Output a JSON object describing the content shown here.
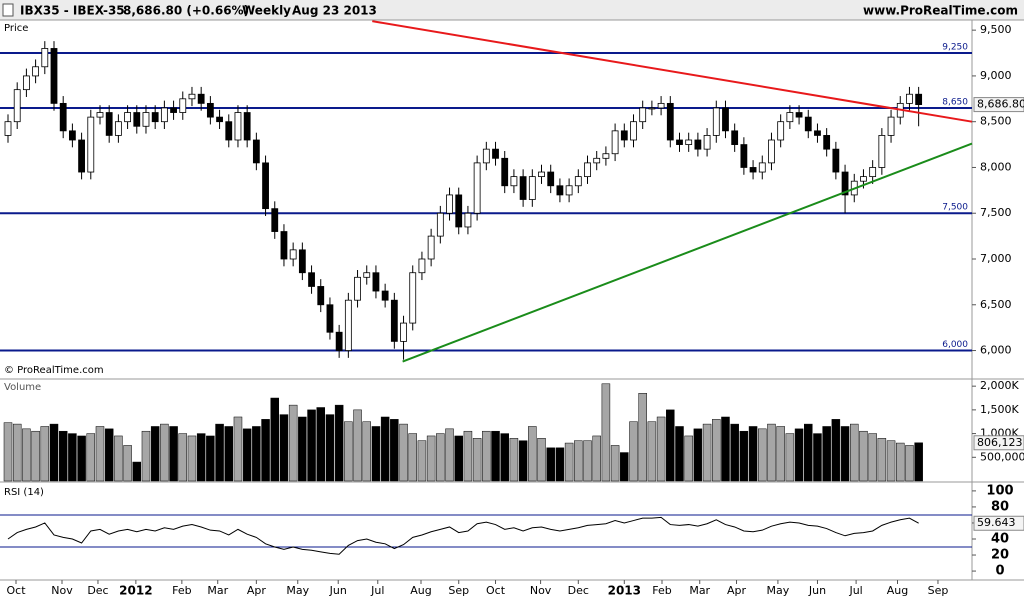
{
  "chart_data": [
    {
      "type": "candlestick",
      "title": "IBX35 - IBEX-35",
      "quote": "8,686.80 (+0.66%)",
      "period": "Weekly",
      "date": "Aug 23 2013",
      "source": "www.ProRealTime.com",
      "panel_label": "Price",
      "copyright": "© ProRealTime.com",
      "up_color": "#ffffff",
      "down_color": "#000000",
      "xlim": [
        -0.87,
        104.8
      ],
      "ylim": [
        5700,
        9600
      ],
      "yticks": [
        {
          "value": 6000,
          "label": "6,000"
        },
        {
          "value": 6500,
          "label": "6,500"
        },
        {
          "value": 7000,
          "label": "7,000"
        },
        {
          "value": 7500,
          "label": "7,500"
        },
        {
          "value": 8000,
          "label": "8,000"
        },
        {
          "value": 8500,
          "label": "8,500"
        },
        {
          "value": 9000,
          "label": "9,000"
        },
        {
          "value": 9500,
          "label": "9,500"
        }
      ],
      "last_label": {
        "value": 8686.8,
        "label": "8,686.80"
      },
      "levels": [
        {
          "value": 9250,
          "label": "9,250"
        },
        {
          "value": 8650,
          "label": "8,650"
        },
        {
          "value": 7500,
          "label": "7,500"
        },
        {
          "value": 6000,
          "label": "6,000"
        }
      ],
      "level_color": "#0a1a8c",
      "trendlines": [
        {
          "color": "#e8191b",
          "points": [
            [
              39.6,
              9598
            ],
            [
              104.8,
              8500
            ]
          ]
        },
        {
          "color": "#1a8c1a",
          "points": [
            [
              42.9,
              5880
            ],
            [
              104.8,
              8261
            ]
          ]
        }
      ],
      "open": [
        8350,
        8500,
        8850,
        9000,
        9100,
        9300,
        8700,
        8400,
        8300,
        7950,
        8550,
        8600,
        8350,
        8500,
        8600,
        8450,
        8600,
        8500,
        8650,
        8600,
        8750,
        8800,
        8700,
        8550,
        8500,
        8300,
        8600,
        8300,
        8050,
        7550,
        7300,
        7000,
        7100,
        6850,
        6700,
        6500,
        6200,
        6000,
        6550,
        6800,
        6850,
        6650,
        6550,
        6100,
        6300,
        6850,
        7000,
        7250,
        7500,
        7700,
        7350,
        7500,
        8050,
        8200,
        8100,
        7800,
        7900,
        7650,
        7900,
        7950,
        7800,
        7700,
        7800,
        7900,
        8050,
        8100,
        8150,
        8400,
        8300,
        8500,
        8650,
        8650,
        8700,
        8300,
        8250,
        8300,
        8200,
        8350,
        8650,
        8400,
        8250,
        8000,
        7950,
        8050,
        8300,
        8500,
        8600,
        8550,
        8400,
        8350,
        8200,
        7950,
        7700,
        7850,
        7900,
        8000,
        8350,
        8550,
        8700,
        8800
      ],
      "high": [
        8580,
        8930,
        9080,
        9180,
        9380,
        9380,
        8780,
        8480,
        8380,
        8630,
        8680,
        8680,
        8580,
        8680,
        8680,
        8680,
        8680,
        8730,
        8730,
        8830,
        8880,
        8880,
        8780,
        8630,
        8580,
        8680,
        8680,
        8380,
        8130,
        7630,
        7380,
        7180,
        7180,
        6930,
        6780,
        6580,
        6280,
        6630,
        6880,
        6930,
        6930,
        6730,
        6630,
        6380,
        6930,
        7080,
        7330,
        7580,
        7780,
        7780,
        7580,
        8130,
        8280,
        8280,
        8180,
        7980,
        7980,
        7980,
        8030,
        8030,
        7880,
        7880,
        7980,
        8130,
        8180,
        8230,
        8480,
        8480,
        8580,
        8730,
        8730,
        8780,
        8780,
        8380,
        8380,
        8380,
        8430,
        8730,
        8730,
        8480,
        8330,
        8080,
        8130,
        8380,
        8580,
        8680,
        8680,
        8630,
        8480,
        8430,
        8280,
        8030,
        7930,
        7980,
        8080,
        8430,
        8630,
        8780,
        8880,
        8880
      ],
      "low": [
        8270,
        8420,
        8770,
        8920,
        9020,
        8620,
        8320,
        8220,
        7870,
        7870,
        8470,
        8270,
        8270,
        8420,
        8370,
        8370,
        8420,
        8420,
        8520,
        8520,
        8670,
        8620,
        8470,
        8420,
        8220,
        8220,
        8220,
        7970,
        7470,
        7220,
        6920,
        6920,
        6770,
        6620,
        6420,
        6120,
        5920,
        5920,
        6470,
        6720,
        6570,
        6470,
        6020,
        5900,
        6220,
        6770,
        6920,
        7170,
        7420,
        7270,
        7270,
        7420,
        7970,
        8020,
        7720,
        7720,
        7570,
        7570,
        7820,
        7720,
        7620,
        7620,
        7720,
        7820,
        7970,
        8020,
        8070,
        8220,
        8220,
        8420,
        8570,
        8570,
        8220,
        8170,
        8170,
        8120,
        8120,
        8270,
        8320,
        8170,
        7920,
        7870,
        7870,
        7970,
        8220,
        8420,
        8470,
        8320,
        8270,
        8120,
        7870,
        7500,
        7620,
        7770,
        7820,
        7920,
        8270,
        8470,
        8620,
        8450
      ],
      "close": [
        8500,
        8850,
        9000,
        9100,
        9300,
        8700,
        8400,
        8300,
        7950,
        8550,
        8600,
        8350,
        8500,
        8600,
        8450,
        8600,
        8500,
        8650,
        8600,
        8750,
        8800,
        8700,
        8550,
        8500,
        8300,
        8600,
        8300,
        8050,
        7550,
        7300,
        7000,
        7100,
        6850,
        6700,
        6500,
        6200,
        6000,
        6550,
        6800,
        6850,
        6650,
        6550,
        6100,
        6300,
        6850,
        7000,
        7250,
        7500,
        7700,
        7350,
        7500,
        8050,
        8200,
        8100,
        7800,
        7900,
        7650,
        7900,
        7950,
        7800,
        7700,
        7800,
        7900,
        8050,
        8100,
        8150,
        8400,
        8300,
        8500,
        8650,
        8650,
        8700,
        8300,
        8250,
        8300,
        8200,
        8350,
        8650,
        8400,
        8250,
        8000,
        7950,
        8050,
        8300,
        8500,
        8600,
        8550,
        8400,
        8350,
        8200,
        7950,
        7700,
        7850,
        7900,
        8000,
        8350,
        8550,
        8700,
        8800,
        8686.8
      ]
    },
    {
      "type": "bar",
      "panel_label": "Volume",
      "up_color": "#a6a6a6",
      "down_color": "#000000",
      "ylim": [
        0,
        2130000
      ],
      "yticks": [
        {
          "value": 500000,
          "label": "500,000"
        },
        {
          "value": 1000000,
          "label": "1,000K"
        },
        {
          "value": 1500000,
          "label": "1,500K"
        },
        {
          "value": 2000000,
          "label": "2,000K"
        }
      ],
      "last_label": {
        "value": 806123,
        "label": "806,123"
      },
      "values": [
        1230000,
        1200000,
        1100000,
        1050000,
        1150000,
        1200000,
        1050000,
        1000000,
        950000,
        1000000,
        1150000,
        1100000,
        950000,
        750000,
        400000,
        1050000,
        1150000,
        1200000,
        1150000,
        1000000,
        950000,
        1000000,
        950000,
        1200000,
        1150000,
        1350000,
        1100000,
        1150000,
        1300000,
        1750000,
        1400000,
        1600000,
        1350000,
        1500000,
        1550000,
        1400000,
        1600000,
        1250000,
        1500000,
        1250000,
        1150000,
        1350000,
        1300000,
        1200000,
        1000000,
        850000,
        950000,
        1000000,
        1100000,
        950000,
        1050000,
        900000,
        1050000,
        1050000,
        1000000,
        900000,
        850000,
        1150000,
        900000,
        700000,
        700000,
        800000,
        850000,
        850000,
        950000,
        2050000,
        750000,
        600000,
        1250000,
        1850000,
        1250000,
        1350000,
        1500000,
        1150000,
        950000,
        1100000,
        1200000,
        1300000,
        1350000,
        1200000,
        1050000,
        1150000,
        1100000,
        1200000,
        1150000,
        1000000,
        1100000,
        1200000,
        1000000,
        1150000,
        1300000,
        1150000,
        1200000,
        1050000,
        1000000,
        900000,
        850000,
        800000,
        750000,
        806123
      ]
    },
    {
      "type": "line",
      "panel_label": "RSI (14)",
      "color": "#000000",
      "level_color": "#0a1a8c",
      "ylim": [
        -9.9,
        108.6
      ],
      "yticks": [
        0,
        20,
        40,
        60,
        80,
        100
      ],
      "levels": [
        30,
        70
      ],
      "last_label": {
        "value": 59.643,
        "label": "59.643"
      },
      "values": [
        40,
        48,
        52,
        55,
        60,
        45,
        42,
        40,
        35,
        50,
        52,
        46,
        50,
        52,
        49,
        52,
        50,
        54,
        52,
        56,
        58,
        55,
        51,
        50,
        45,
        52,
        46,
        42,
        34,
        30,
        27,
        30,
        27,
        26,
        24,
        22,
        21,
        32,
        38,
        40,
        36,
        34,
        28,
        33,
        42,
        45,
        49,
        52,
        55,
        48,
        50,
        59,
        61,
        58,
        52,
        54,
        50,
        54,
        55,
        52,
        50,
        52,
        54,
        57,
        58,
        59,
        63,
        60,
        63,
        66,
        66,
        67,
        58,
        57,
        58,
        56,
        59,
        64,
        58,
        55,
        50,
        49,
        51,
        56,
        59,
        61,
        60,
        57,
        56,
        53,
        48,
        44,
        47,
        48,
        50,
        57,
        61,
        64,
        66,
        59.643
      ],
      "xticks": [
        {
          "value": 0.87,
          "label": "Oct"
        },
        {
          "value": 5.87,
          "label": "Nov"
        },
        {
          "value": 9.78,
          "label": "Dec"
        },
        {
          "value": 13.9,
          "label": "2012"
        },
        {
          "value": 18.9,
          "label": "Feb"
        },
        {
          "value": 22.8,
          "label": "Mar"
        },
        {
          "value": 27,
          "label": "Apr"
        },
        {
          "value": 31.5,
          "label": "May"
        },
        {
          "value": 35.9,
          "label": "Jun"
        },
        {
          "value": 40.2,
          "label": "Jul"
        },
        {
          "value": 44.9,
          "label": "Aug"
        },
        {
          "value": 49,
          "label": "Sep"
        },
        {
          "value": 53,
          "label": "Oct"
        },
        {
          "value": 57.9,
          "label": "Nov"
        },
        {
          "value": 62,
          "label": "Dec"
        },
        {
          "value": 67,
          "label": "2013"
        },
        {
          "value": 71.1,
          "label": "Feb"
        },
        {
          "value": 75.2,
          "label": "Mar"
        },
        {
          "value": 79.2,
          "label": "Apr"
        },
        {
          "value": 83.7,
          "label": "May"
        },
        {
          "value": 88,
          "label": "Jun"
        },
        {
          "value": 92.2,
          "label": "Jul"
        },
        {
          "value": 96.7,
          "label": "Aug"
        },
        {
          "value": 101.1,
          "label": "Sep"
        }
      ]
    }
  ]
}
